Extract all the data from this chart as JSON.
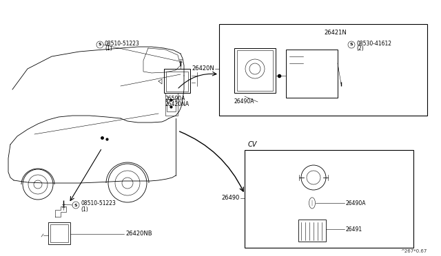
{
  "bg_color": "#ffffff",
  "figure_width": 6.4,
  "figure_height": 3.72,
  "watermark": "^267*0.67",
  "labels": {
    "screw_top": "08510-51223",
    "screw_top_num": "(1)",
    "label_26590A": "26590A",
    "label_26420NA": "26420NA",
    "label_26420N": "26420N",
    "label_26421N": "26421N",
    "screw_right": "08530-41612",
    "screw_right_num": "(2)",
    "label_26490A_box": "26490A",
    "label_26420NB": "26420NB",
    "label_screw2": "08510-51223",
    "label_screw2_num": "(1)",
    "label_CV": "CV",
    "label_26490": "26490",
    "label_26490A_cv": "26490A",
    "label_26491": "26491"
  }
}
